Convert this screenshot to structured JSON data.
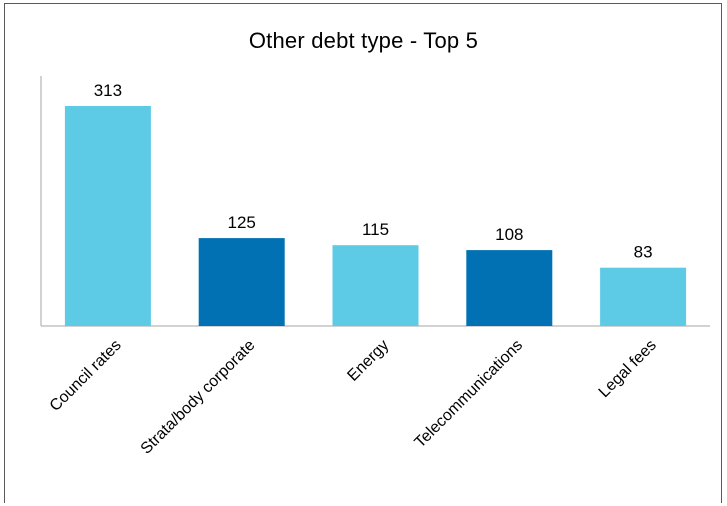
{
  "chart_data": {
    "type": "bar",
    "title": "Other debt type - Top 5",
    "xlabel": "",
    "ylabel": "",
    "categories": [
      "Council rates",
      "Strata/body corporate",
      "Energy",
      "Telecommunications",
      "Legal fees"
    ],
    "values": [
      313,
      125,
      115,
      108,
      83
    ],
    "ylim": [
      0,
      313
    ],
    "grid": false,
    "legend": "none",
    "colors": [
      "#5ecbe6",
      "#0271b3",
      "#5ecbe6",
      "#0271b3",
      "#5ecbe6"
    ]
  }
}
